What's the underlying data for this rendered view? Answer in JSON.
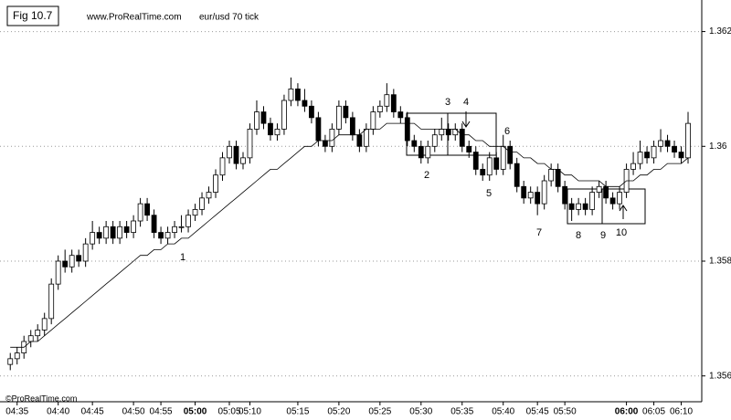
{
  "chart_data": {
    "type": "candlestick",
    "figure_label": "Fig 10.7",
    "source": "www.ProRealTime.com",
    "title": "eur/usd 70 tick",
    "copyright": "©ProRealTime.com",
    "up_color": "#ffffff",
    "down_color": "#000000",
    "ma_color": "#000000",
    "grid": true,
    "xlim": [
      -1.5,
      101
    ],
    "ylim": [
      1.35555,
      1.36255
    ],
    "yticks": [
      1.362,
      1.36,
      1.358,
      1.356
    ],
    "xticks": [
      {
        "value": 1,
        "label": "04:35"
      },
      {
        "value": 7,
        "label": "04:40"
      },
      {
        "value": 12,
        "label": "04:45"
      },
      {
        "value": 18,
        "label": "04:50"
      },
      {
        "value": 22,
        "label": "04:55"
      },
      {
        "value": 27,
        "label": "05:00",
        "bold": true
      },
      {
        "value": 32,
        "label": "05:05"
      },
      {
        "value": 35,
        "label": "05:10"
      },
      {
        "value": 42,
        "label": "05:15"
      },
      {
        "value": 48,
        "label": "05:20"
      },
      {
        "value": 54,
        "label": "05:25"
      },
      {
        "value": 60,
        "label": "05:30"
      },
      {
        "value": 66,
        "label": "05:35"
      },
      {
        "value": 72,
        "label": "05:40"
      },
      {
        "value": 77,
        "label": "05:45"
      },
      {
        "value": 81,
        "label": "05:50"
      },
      {
        "value": 90,
        "label": "06:00",
        "bold": true
      },
      {
        "value": 94,
        "label": "06:05"
      },
      {
        "value": 98,
        "label": "06:10"
      }
    ],
    "candles": [
      [
        1.3562,
        1.3564,
        1.3561,
        1.3563
      ],
      [
        1.3563,
        1.3565,
        1.3562,
        1.3564
      ],
      [
        1.3564,
        1.3567,
        1.3563,
        1.3566
      ],
      [
        1.3566,
        1.3568,
        1.3565,
        1.3567
      ],
      [
        1.3567,
        1.3569,
        1.3566,
        1.3568
      ],
      [
        1.3568,
        1.3571,
        1.3567,
        1.357
      ],
      [
        1.357,
        1.3577,
        1.3569,
        1.3576
      ],
      [
        1.3576,
        1.3581,
        1.3575,
        1.358
      ],
      [
        1.358,
        1.3582,
        1.3578,
        1.3579
      ],
      [
        1.3579,
        1.3582,
        1.3578,
        1.3581
      ],
      [
        1.3581,
        1.3582,
        1.3579,
        1.358
      ],
      [
        1.358,
        1.3584,
        1.3579,
        1.3583
      ],
      [
        1.3583,
        1.3587,
        1.3582,
        1.3585
      ],
      [
        1.3585,
        1.3586,
        1.3583,
        1.3584
      ],
      [
        1.3584,
        1.3587,
        1.3583,
        1.3586
      ],
      [
        1.3586,
        1.3587,
        1.3583,
        1.3584
      ],
      [
        1.3584,
        1.3587,
        1.3583,
        1.3586
      ],
      [
        1.3586,
        1.3587,
        1.3584,
        1.3585
      ],
      [
        1.3585,
        1.3588,
        1.3584,
        1.3587
      ],
      [
        1.3587,
        1.3591,
        1.3586,
        1.359
      ],
      [
        1.359,
        1.3591,
        1.3587,
        1.3588
      ],
      [
        1.3588,
        1.3589,
        1.3584,
        1.3585
      ],
      [
        1.3585,
        1.3586,
        1.3583,
        1.3584
      ],
      [
        1.3584,
        1.3586,
        1.3583,
        1.3585
      ],
      [
        1.3585,
        1.3587,
        1.3584,
        1.3586
      ],
      [
        1.3586,
        1.3588,
        1.3585,
        1.3586
      ],
      [
        1.3586,
        1.3589,
        1.3585,
        1.3588
      ],
      [
        1.3588,
        1.359,
        1.3587,
        1.3589
      ],
      [
        1.3589,
        1.3592,
        1.3588,
        1.3591
      ],
      [
        1.3591,
        1.3593,
        1.359,
        1.3592
      ],
      [
        1.3592,
        1.3596,
        1.3591,
        1.3595
      ],
      [
        1.3595,
        1.3599,
        1.3594,
        1.3598
      ],
      [
        1.3598,
        1.3601,
        1.3597,
        1.36
      ],
      [
        1.36,
        1.3601,
        1.3596,
        1.3597
      ],
      [
        1.3597,
        1.3599,
        1.3596,
        1.3598
      ],
      [
        1.3598,
        1.3604,
        1.3597,
        1.3603
      ],
      [
        1.3603,
        1.3608,
        1.3602,
        1.3606
      ],
      [
        1.3606,
        1.3607,
        1.3603,
        1.3604
      ],
      [
        1.3604,
        1.3605,
        1.3601,
        1.3602
      ],
      [
        1.3602,
        1.3604,
        1.3601,
        1.3603
      ],
      [
        1.3603,
        1.3609,
        1.3602,
        1.3608
      ],
      [
        1.3608,
        1.3612,
        1.3607,
        1.361
      ],
      [
        1.361,
        1.3611,
        1.3607,
        1.3608
      ],
      [
        1.3608,
        1.361,
        1.3606,
        1.3607
      ],
      [
        1.3607,
        1.3608,
        1.3604,
        1.3605
      ],
      [
        1.3605,
        1.3606,
        1.36,
        1.3601
      ],
      [
        1.3601,
        1.3602,
        1.3599,
        1.36
      ],
      [
        1.36,
        1.3604,
        1.3599,
        1.3603
      ],
      [
        1.3603,
        1.3608,
        1.3602,
        1.3607
      ],
      [
        1.3607,
        1.3608,
        1.3604,
        1.3605
      ],
      [
        1.3605,
        1.3606,
        1.3601,
        1.3602
      ],
      [
        1.3602,
        1.3603,
        1.3599,
        1.36
      ],
      [
        1.36,
        1.3604,
        1.3599,
        1.3603
      ],
      [
        1.3603,
        1.3607,
        1.3602,
        1.3606
      ],
      [
        1.3606,
        1.3608,
        1.3605,
        1.3607
      ],
      [
        1.3607,
        1.3611,
        1.3606,
        1.3609
      ],
      [
        1.3609,
        1.361,
        1.3605,
        1.3606
      ],
      [
        1.3606,
        1.3607,
        1.3604,
        1.3605
      ],
      [
        1.3605,
        1.3606,
        1.36,
        1.3601
      ],
      [
        1.3601,
        1.3602,
        1.3599,
        1.36
      ],
      [
        1.36,
        1.3601,
        1.3597,
        1.3598
      ],
      [
        1.3598,
        1.3601,
        1.3597,
        1.36
      ],
      [
        1.36,
        1.3603,
        1.3599,
        1.3602
      ],
      [
        1.3602,
        1.3605,
        1.3601,
        1.3603
      ],
      [
        1.3603,
        1.3604,
        1.3601,
        1.3602
      ],
      [
        1.3602,
        1.3604,
        1.3601,
        1.3603
      ],
      [
        1.3603,
        1.3604,
        1.3599,
        1.36
      ],
      [
        1.36,
        1.3601,
        1.3598,
        1.3599
      ],
      [
        1.3599,
        1.36,
        1.3595,
        1.3596
      ],
      [
        1.3596,
        1.3597,
        1.3594,
        1.3595
      ],
      [
        1.3595,
        1.3599,
        1.3594,
        1.3598
      ],
      [
        1.3598,
        1.3599,
        1.3595,
        1.3596
      ],
      [
        1.3596,
        1.3602,
        1.3595,
        1.36
      ],
      [
        1.36,
        1.3601,
        1.3596,
        1.3597
      ],
      [
        1.3597,
        1.3598,
        1.3592,
        1.3593
      ],
      [
        1.3593,
        1.3594,
        1.359,
        1.3591
      ],
      [
        1.3591,
        1.3593,
        1.359,
        1.3592
      ],
      [
        1.3592,
        1.3593,
        1.3588,
        1.359
      ],
      [
        1.359,
        1.3595,
        1.3589,
        1.3594
      ],
      [
        1.3594,
        1.3597,
        1.3593,
        1.3596
      ],
      [
        1.3596,
        1.3597,
        1.3592,
        1.3593
      ],
      [
        1.3593,
        1.3594,
        1.3589,
        1.359
      ],
      [
        1.359,
        1.3591,
        1.3587,
        1.3589
      ],
      [
        1.3589,
        1.3591,
        1.3588,
        1.359
      ],
      [
        1.359,
        1.3591,
        1.3588,
        1.3589
      ],
      [
        1.3589,
        1.3593,
        1.3588,
        1.3592
      ],
      [
        1.3592,
        1.3594,
        1.3591,
        1.3593
      ],
      [
        1.3593,
        1.3594,
        1.359,
        1.3591
      ],
      [
        1.3591,
        1.3592,
        1.3589,
        1.359
      ],
      [
        1.359,
        1.3593,
        1.3589,
        1.3592
      ],
      [
        1.3592,
        1.3597,
        1.3591,
        1.3596
      ],
      [
        1.3596,
        1.3599,
        1.3595,
        1.3597
      ],
      [
        1.3597,
        1.3601,
        1.3596,
        1.3599
      ],
      [
        1.3599,
        1.36,
        1.3597,
        1.3598
      ],
      [
        1.3598,
        1.3601,
        1.3597,
        1.36
      ],
      [
        1.36,
        1.3603,
        1.3599,
        1.3601
      ],
      [
        1.3601,
        1.3602,
        1.3599,
        1.36
      ],
      [
        1.36,
        1.3601,
        1.3598,
        1.3599
      ],
      [
        1.3599,
        1.36,
        1.3597,
        1.3598
      ],
      [
        1.3598,
        1.3606,
        1.3597,
        1.3604
      ]
    ],
    "ma": [
      1.3565,
      1.3565,
      1.3565,
      1.3566,
      1.3566,
      1.3567,
      1.3568,
      1.3569,
      1.357,
      1.3571,
      1.3572,
      1.3573,
      1.3574,
      1.3575,
      1.3576,
      1.3577,
      1.3578,
      1.3579,
      1.358,
      1.3581,
      1.3581,
      1.3582,
      1.3582,
      1.3583,
      1.3583,
      1.3584,
      1.3584,
      1.3585,
      1.3586,
      1.3587,
      1.3588,
      1.3589,
      1.359,
      1.3591,
      1.3592,
      1.3593,
      1.3594,
      1.3595,
      1.3596,
      1.3596,
      1.3597,
      1.3598,
      1.3599,
      1.36,
      1.36,
      1.3601,
      1.3601,
      1.3601,
      1.3602,
      1.3602,
      1.3602,
      1.3602,
      1.3603,
      1.3603,
      1.3603,
      1.3604,
      1.3604,
      1.3604,
      1.3604,
      1.3604,
      1.3603,
      1.3603,
      1.3603,
      1.3603,
      1.3603,
      1.3603,
      1.3602,
      1.3602,
      1.3601,
      1.3601,
      1.36,
      1.36,
      1.36,
      1.3599,
      1.3599,
      1.3598,
      1.3598,
      1.3597,
      1.3597,
      1.3596,
      1.3596,
      1.3595,
      1.3595,
      1.3594,
      1.3594,
      1.3594,
      1.3594,
      1.3593,
      1.3593,
      1.3593,
      1.3594,
      1.3594,
      1.3595,
      1.3595,
      1.3596,
      1.3596,
      1.3597,
      1.3597,
      1.3597,
      1.3598
    ],
    "annotations": [
      "1",
      "2",
      "3",
      "4",
      "5",
      "6",
      "7",
      "8",
      "9",
      "10"
    ]
  }
}
